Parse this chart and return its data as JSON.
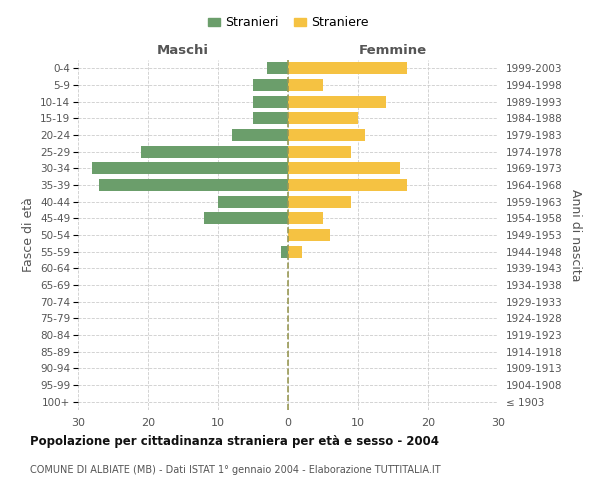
{
  "age_groups": [
    "0-4",
    "5-9",
    "10-14",
    "15-19",
    "20-24",
    "25-29",
    "30-34",
    "35-39",
    "40-44",
    "45-49",
    "50-54",
    "55-59",
    "60-64",
    "65-69",
    "70-74",
    "75-79",
    "80-84",
    "85-89",
    "90-94",
    "95-99",
    "100+"
  ],
  "birth_years": [
    "1999-2003",
    "1994-1998",
    "1989-1993",
    "1984-1988",
    "1979-1983",
    "1974-1978",
    "1969-1973",
    "1964-1968",
    "1959-1963",
    "1954-1958",
    "1949-1953",
    "1944-1948",
    "1939-1943",
    "1934-1938",
    "1929-1933",
    "1924-1928",
    "1919-1923",
    "1914-1918",
    "1909-1913",
    "1904-1908",
    "≤ 1903"
  ],
  "males": [
    3,
    5,
    5,
    5,
    8,
    21,
    28,
    27,
    10,
    12,
    0,
    1,
    0,
    0,
    0,
    0,
    0,
    0,
    0,
    0,
    0
  ],
  "females": [
    17,
    5,
    14,
    10,
    11,
    9,
    16,
    17,
    9,
    5,
    6,
    2,
    0,
    0,
    0,
    0,
    0,
    0,
    0,
    0,
    0
  ],
  "male_color": "#6b9e6b",
  "female_color": "#f5c242",
  "bar_height": 0.72,
  "xlim": 30,
  "title": "Popolazione per cittadinanza straniera per età e sesso - 2004",
  "subtitle": "COMUNE DI ALBIATE (MB) - Dati ISTAT 1° gennaio 2004 - Elaborazione TUTTITALIA.IT",
  "ylabel_left": "Fasce di età",
  "ylabel_right": "Anni di nascita",
  "legend_stranieri": "Stranieri",
  "legend_straniere": "Straniere",
  "maschi_label": "Maschi",
  "femmine_label": "Femmine",
  "bg_color": "#ffffff",
  "grid_color": "#cccccc",
  "zero_line_color": "#999955",
  "text_color": "#555555",
  "title_color": "#111111"
}
